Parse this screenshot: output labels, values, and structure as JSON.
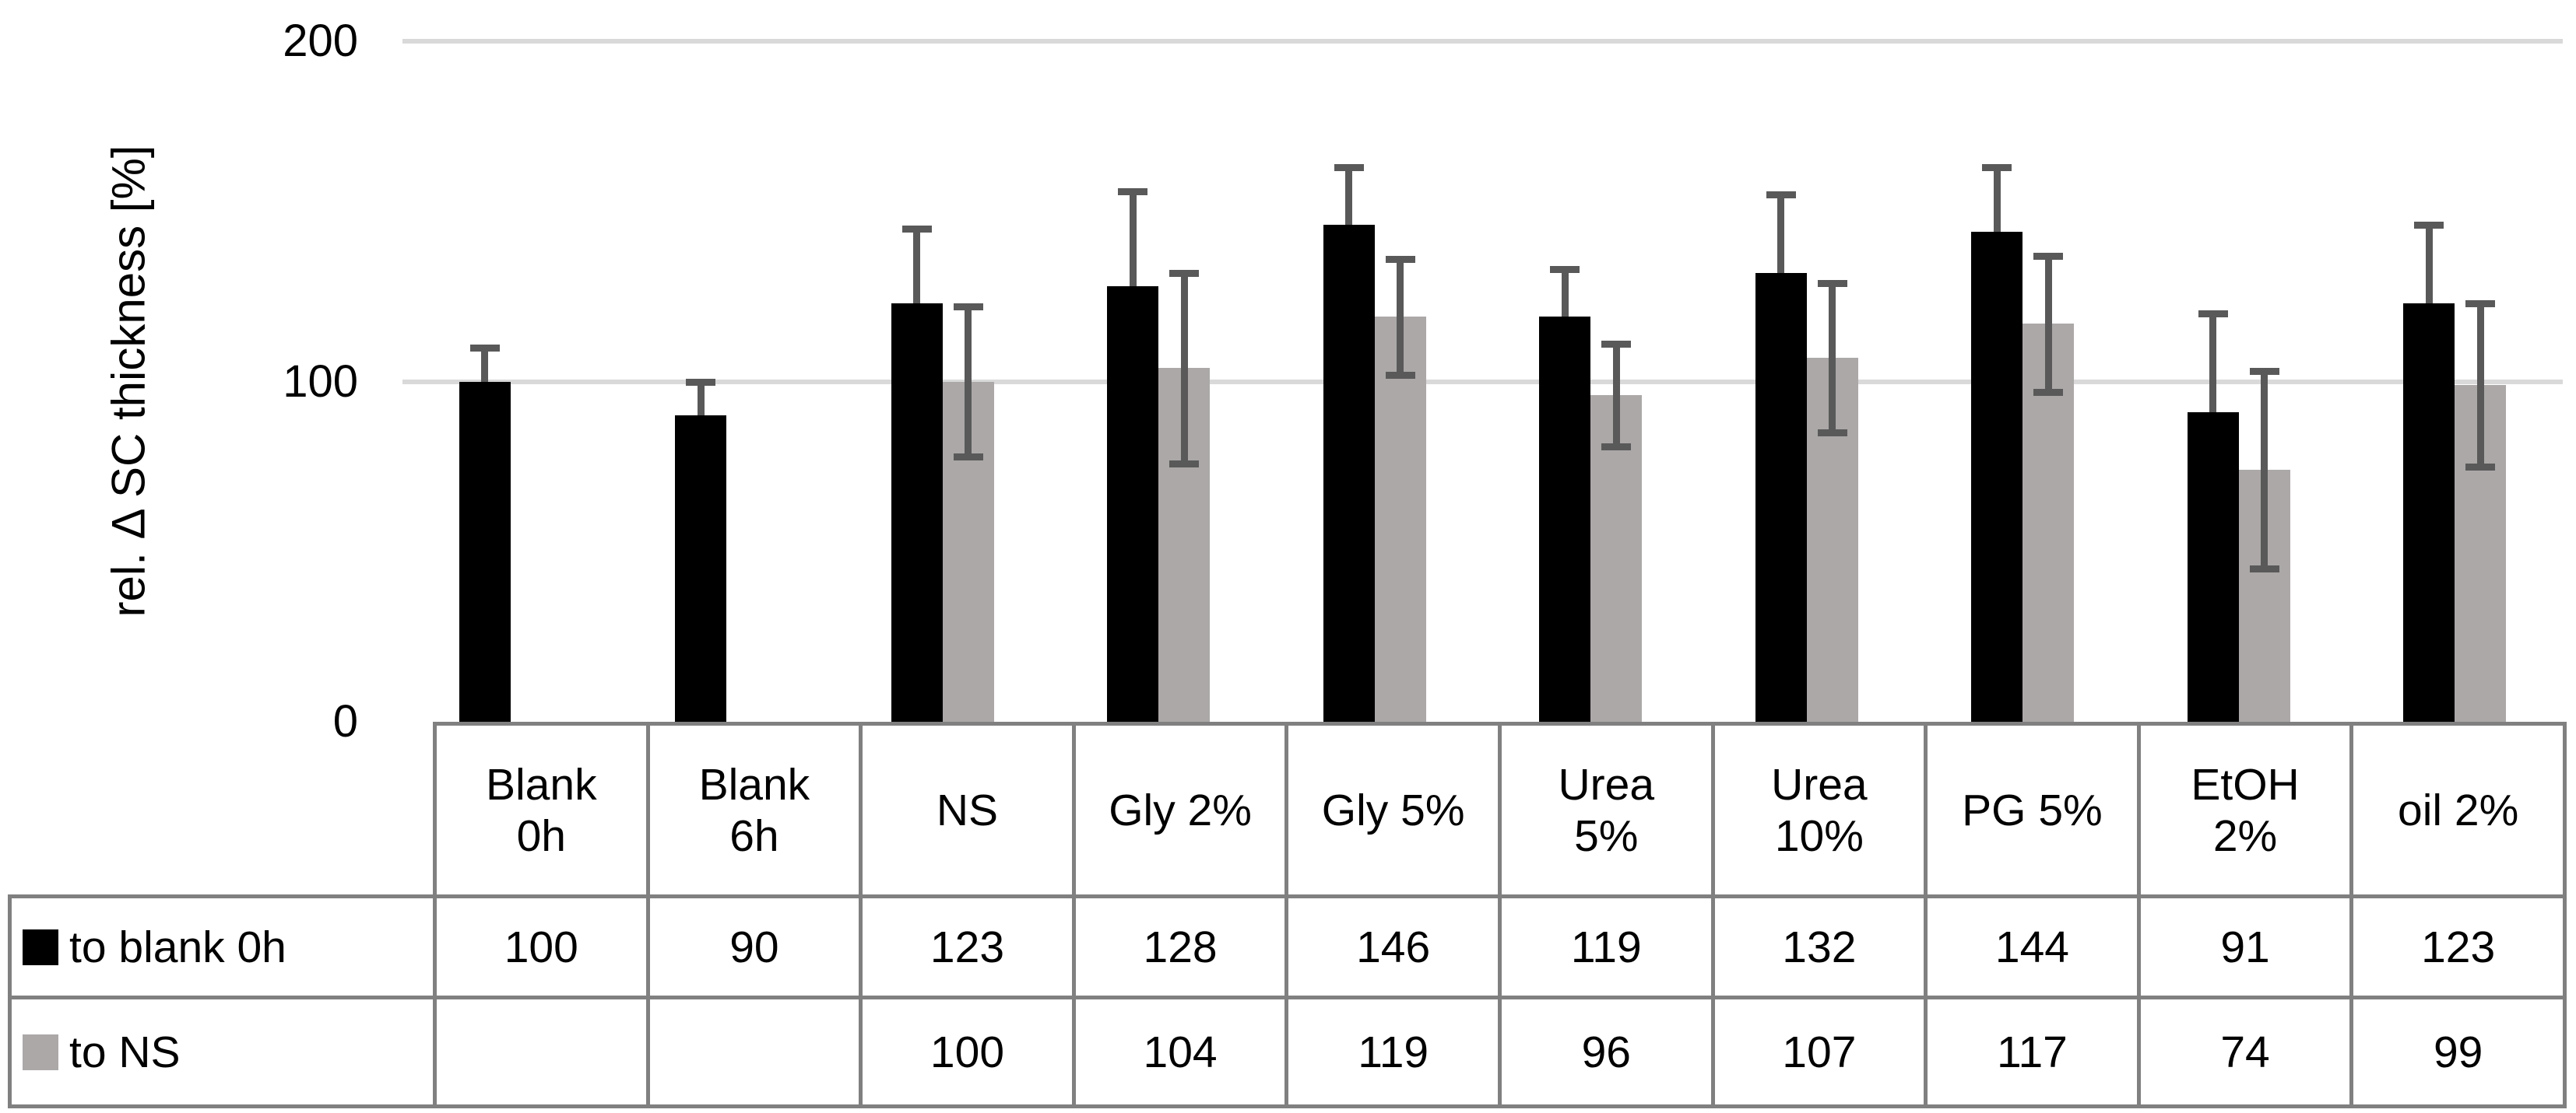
{
  "chart_data": {
    "type": "bar",
    "title": "",
    "xlabel": "",
    "ylabel": "rel. Δ SC thickness [%]",
    "ylim": [
      0,
      200
    ],
    "yticks": [
      0,
      100,
      200
    ],
    "grid": "horizontal",
    "gridline_values": [
      100,
      200
    ],
    "legend_position": "table-left",
    "categories": [
      "Blank\n0h",
      "Blank\n6h",
      "NS",
      "Gly 2%",
      "Gly 5%",
      "Urea\n5%",
      "Urea\n10%",
      "PG 5%",
      "EtOH\n2%",
      "oil 2%"
    ],
    "series": [
      {
        "name": "to blank 0h",
        "color": "#000000",
        "values": [
          100,
          90,
          123,
          128,
          146,
          119,
          132,
          144,
          91,
          123
        ],
        "errors": [
          10,
          10,
          22,
          28,
          17,
          14,
          23,
          19,
          29,
          23
        ]
      },
      {
        "name": "to NS",
        "color": "#ACA8A8",
        "values": [
          null,
          null,
          100,
          104,
          119,
          96,
          107,
          117,
          74,
          99
        ],
        "errors": [
          null,
          null,
          22,
          28,
          17,
          15,
          22,
          20,
          29,
          24
        ]
      }
    ],
    "colors": {
      "error_bar": "#595959",
      "gridline": "#D9D9D9",
      "table_border": "#808080",
      "text": "#000000",
      "background": "#ffffff"
    }
  },
  "table": {
    "rows": [
      {
        "label": "to blank 0h",
        "swatch_color": "#000000",
        "values": [
          "100",
          "90",
          "123",
          "128",
          "146",
          "119",
          "132",
          "144",
          "91",
          "123"
        ]
      },
      {
        "label": "to NS",
        "swatch_color": "#ACA8A8",
        "values": [
          "",
          "",
          "100",
          "104",
          "119",
          "96",
          "107",
          "117",
          "74",
          "99"
        ]
      }
    ]
  }
}
